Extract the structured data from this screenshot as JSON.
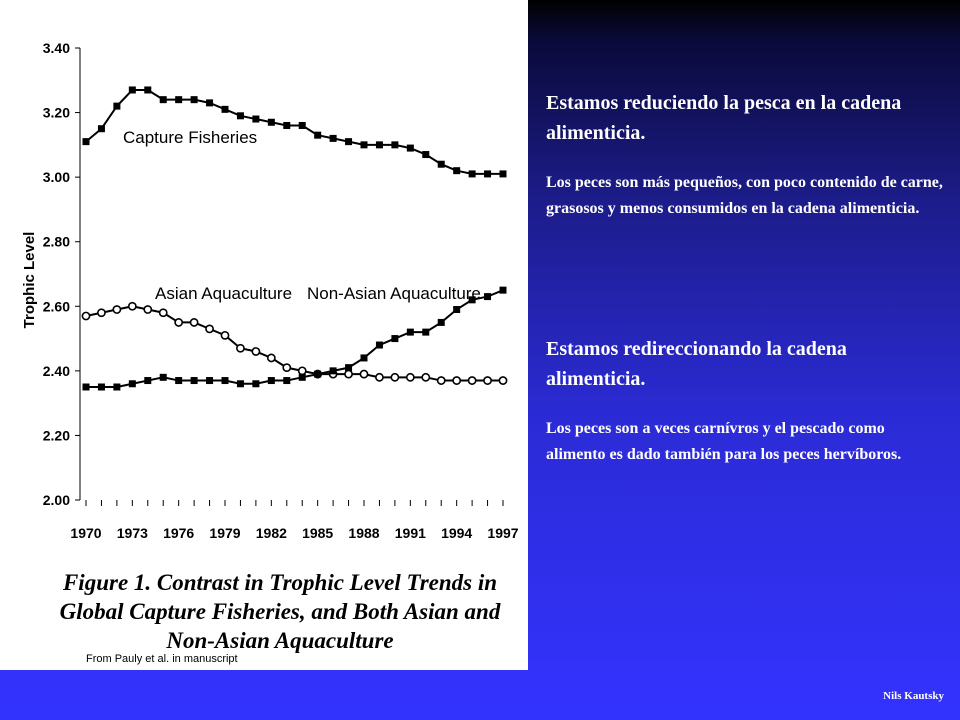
{
  "slide": {
    "heading1": "Estamos reduciendo la pesca en la cadena alimenticia.",
    "body1": "Los peces son más pequeños, con poco contenido de carne, grasosos  y menos consumidos en la cadena alimenticia.",
    "heading2": "Estamos redireccionando la cadena alimenticia.",
    "body2": "Los peces son a veces carnívros y el pescado como alimento es dado también para los peces hervíboros.",
    "author": "Nils Kautsky"
  },
  "figure": {
    "caption": "Figure 1. Contrast in Trophic Level Trends in Global Capture Fisheries, and Both Asian and Non-Asian Aquaculture",
    "source": "From Pauly et al. in manuscript"
  },
  "chart_data": {
    "type": "line",
    "title": "",
    "xlabel": "",
    "ylabel": "Trophic Level",
    "ylim": [
      2.0,
      3.4
    ],
    "xlim": [
      1970,
      1997
    ],
    "yticks": [
      "2.00",
      "2.20",
      "2.40",
      "2.60",
      "2.80",
      "3.00",
      "3.20",
      "3.40"
    ],
    "xticks": [
      "1970",
      "1973",
      "1976",
      "1979",
      "1982",
      "1985",
      "1988",
      "1991",
      "1994",
      "1997"
    ],
    "x": [
      1970,
      1971,
      1972,
      1973,
      1974,
      1975,
      1976,
      1977,
      1978,
      1979,
      1980,
      1981,
      1982,
      1983,
      1984,
      1985,
      1986,
      1987,
      1988,
      1989,
      1990,
      1991,
      1992,
      1993,
      1994,
      1995,
      1996,
      1997
    ],
    "series": [
      {
        "name": "Capture Fisheries",
        "marker": "square",
        "values": [
          3.11,
          3.15,
          3.22,
          3.27,
          3.27,
          3.24,
          3.24,
          3.24,
          3.23,
          3.21,
          3.19,
          3.18,
          3.17,
          3.16,
          3.16,
          3.13,
          3.12,
          3.11,
          3.1,
          3.1,
          3.1,
          3.09,
          3.07,
          3.04,
          3.02,
          3.01,
          3.01,
          3.01
        ]
      },
      {
        "name": "Asian Aquaculture",
        "marker": "circle",
        "values": [
          2.57,
          2.58,
          2.59,
          2.6,
          2.59,
          2.58,
          2.55,
          2.55,
          2.53,
          2.51,
          2.47,
          2.46,
          2.44,
          2.41,
          2.4,
          2.39,
          2.39,
          2.39,
          2.39,
          2.38,
          2.38,
          2.38,
          2.38,
          2.37,
          2.37,
          2.37,
          2.37,
          2.37
        ]
      },
      {
        "name": "Non-Asian Aquaculture",
        "marker": "square",
        "values": [
          2.35,
          2.35,
          2.35,
          2.36,
          2.37,
          2.38,
          2.37,
          2.37,
          2.37,
          2.37,
          2.36,
          2.36,
          2.37,
          2.37,
          2.38,
          2.39,
          2.4,
          2.41,
          2.44,
          2.48,
          2.5,
          2.52,
          2.52,
          2.55,
          2.59,
          2.62,
          2.63,
          2.65
        ]
      }
    ],
    "colors": {
      "line": "#000000",
      "background": "#ffffff"
    }
  }
}
